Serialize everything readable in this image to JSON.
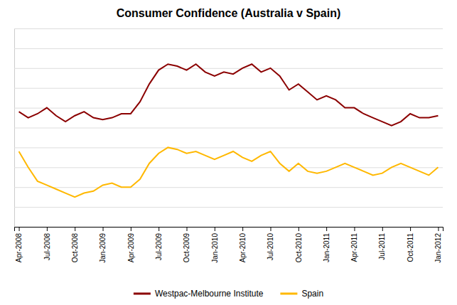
{
  "chart_data": {
    "type": "line",
    "title": "Consumer Confidence (Australia v Spain)",
    "categories": [
      "Apr-2008",
      null,
      null,
      "Jul-2008",
      null,
      null,
      "Oct-2008",
      null,
      null,
      "Jan-2009",
      null,
      null,
      "Apr-2009",
      null,
      null,
      "Jul-2009",
      null,
      null,
      "Oct-2009",
      null,
      null,
      "Jan-2010",
      null,
      null,
      "Apr-2010",
      null,
      null,
      "Jul-2010",
      null,
      null,
      "Oct-2010",
      null,
      null,
      "Jan-2011",
      null,
      null,
      "Apr-2011",
      null,
      null,
      "Jul-2011",
      null,
      null,
      "Oct-2011",
      null,
      null,
      "Jan-2012"
    ],
    "series": [
      {
        "name": "Westpac-Melbourne Institute",
        "color": "#8B0000",
        "values": [
          98,
          95,
          97,
          100,
          96,
          93,
          96,
          98,
          95,
          94,
          95,
          97,
          97,
          103,
          112,
          119,
          122,
          121,
          119,
          122,
          118,
          116,
          118,
          117,
          120,
          122,
          118,
          120,
          116,
          109,
          112,
          108,
          104,
          106,
          104,
          100,
          100,
          97,
          95,
          93,
          91,
          93,
          97,
          95,
          95,
          96
        ]
      },
      {
        "name": "Spain",
        "color": "#FFB800",
        "values": [
          78,
          70,
          63,
          61,
          59,
          57,
          55,
          57,
          58,
          61,
          62,
          60,
          60,
          64,
          72,
          77,
          80,
          79,
          77,
          78,
          76,
          74,
          76,
          78,
          75,
          73,
          76,
          78,
          72,
          68,
          72,
          68,
          67,
          68,
          70,
          72,
          70,
          68,
          66,
          67,
          70,
          72,
          70,
          68,
          66,
          70
        ]
      }
    ],
    "ylim": [
      40,
      140
    ],
    "yticks": [
      40,
      50,
      60,
      70,
      80,
      90,
      100,
      110,
      120,
      130,
      140
    ],
    "grid": true,
    "legend": "bottom",
    "tick_labels": "x"
  }
}
